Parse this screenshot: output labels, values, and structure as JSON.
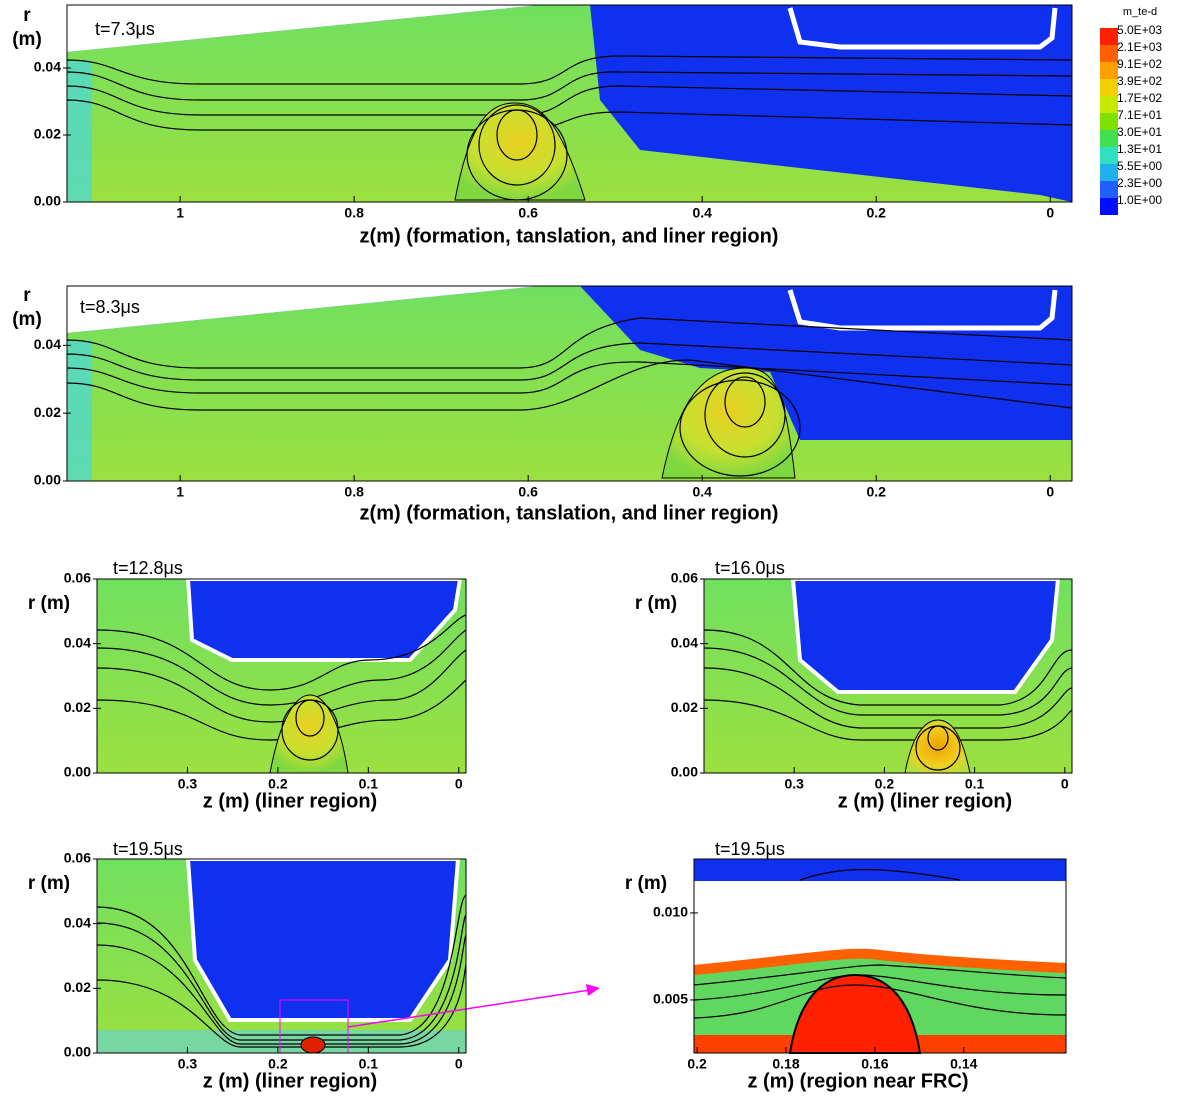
{
  "chart_data": [
    {
      "type": "contour",
      "title": "t=7.3μs",
      "xlabel": "z(m) (formation, tanslation, and liner region)",
      "ylabel": [
        "r",
        "(m)"
      ],
      "xlim": [
        1.13,
        -0.025
      ],
      "ylim": [
        0,
        0.0588
      ],
      "xticks": [
        1,
        0.8,
        0.6,
        0.4,
        0.2,
        0
      ],
      "yticks": [
        {
          "value": 0,
          "label": "0.00"
        },
        {
          "value": 0.02,
          "label": "0.02"
        },
        {
          "value": 0.04,
          "label": "0.04"
        }
      ]
    },
    {
      "type": "contour",
      "title": "t=8.3μs",
      "xlabel": "z(m) (formation, tanslation, and liner region)",
      "ylabel": [
        "r",
        "(m)"
      ],
      "xlim": [
        1.13,
        -0.025
      ],
      "ylim": [
        0,
        0.0575
      ],
      "xticks": [
        1,
        0.8,
        0.6,
        0.4,
        0.2,
        0
      ],
      "yticks": [
        {
          "value": 0,
          "label": "0.00"
        },
        {
          "value": 0.02,
          "label": "0.02"
        },
        {
          "value": 0.04,
          "label": "0.04"
        }
      ]
    },
    {
      "type": "contour",
      "title": "t=12.8μs",
      "xlabel": "z (m) (liner region)",
      "ylabel": "r (m)",
      "xlim": [
        0.4,
        -0.008
      ],
      "ylim": [
        0,
        0.06
      ],
      "xticks": [
        0.3,
        0.2,
        0.1,
        0
      ],
      "yticks": [
        {
          "value": 0,
          "label": "0.00"
        },
        {
          "value": 0.02,
          "label": "0.02"
        },
        {
          "value": 0.04,
          "label": "0.04"
        },
        {
          "value": 0.06,
          "label": "0.06"
        }
      ]
    },
    {
      "type": "contour",
      "title": "t=16.0μs",
      "xlabel": "z (m) (liner region)",
      "ylabel": "r (m)",
      "xlim": [
        0.4,
        -0.008
      ],
      "ylim": [
        0,
        0.06
      ],
      "xticks": [
        0.3,
        0.2,
        0.1,
        0
      ],
      "yticks": [
        {
          "value": 0,
          "label": "0.00"
        },
        {
          "value": 0.02,
          "label": "0.02"
        },
        {
          "value": 0.04,
          "label": "0.04"
        },
        {
          "value": 0.06,
          "label": "0.06"
        }
      ]
    },
    {
      "type": "contour",
      "title": "t=19.5μs",
      "xlabel": "z (m) (liner region)",
      "ylabel": "r (m)",
      "xlim": [
        0.4,
        -0.008
      ],
      "ylim": [
        0,
        0.06
      ],
      "xticks": [
        0.3,
        0.2,
        0.1,
        0
      ],
      "yticks": [
        {
          "value": 0,
          "label": "0.00"
        },
        {
          "value": 0.02,
          "label": "0.02"
        },
        {
          "value": 0.04,
          "label": "0.04"
        },
        {
          "value": 0.06,
          "label": "0.06"
        }
      ]
    },
    {
      "type": "contour",
      "title": "t=19.5μs",
      "xlabel": "z (m) (region near FRC)",
      "ylabel": "r (m)",
      "xlim": [
        0.2007,
        0.117
      ],
      "ylim": [
        0.00195,
        0.0131
      ],
      "xticks": [
        {
          "value": 0.2,
          "label": "0.2"
        },
        0.18,
        0.16,
        0.14
      ],
      "yticks": [
        {
          "value": 0.005,
          "label": "0.005"
        },
        {
          "value": 0.01,
          "label": "0.010"
        }
      ]
    }
  ],
  "colorbar": {
    "title": "m_te-d",
    "ticks": [
      {
        "value": 5000,
        "label": "5.0E+03"
      },
      {
        "value": 2100,
        "label": "2.1E+03"
      },
      {
        "value": 910,
        "label": "9.1E+02"
      },
      {
        "value": 390,
        "label": "3.9E+02"
      },
      {
        "value": 170,
        "label": "1.7E+02"
      },
      {
        "value": 71,
        "label": "7.1E+01"
      },
      {
        "value": 30,
        "label": "3.0E+01"
      },
      {
        "value": 13,
        "label": "1.3E+01"
      },
      {
        "value": 5.5,
        "label": "5.5E+00"
      },
      {
        "value": 2.3,
        "label": "2.3E+00"
      },
      {
        "value": 1,
        "label": "1.0E+00"
      }
    ],
    "colors": [
      "#ff2000",
      "#ff6000",
      "#ffa000",
      "#f2d000",
      "#c8e800",
      "#80e000",
      "#40e050",
      "#30e0c0",
      "#20b0f0",
      "#2060ff",
      "#0010ff"
    ]
  }
}
